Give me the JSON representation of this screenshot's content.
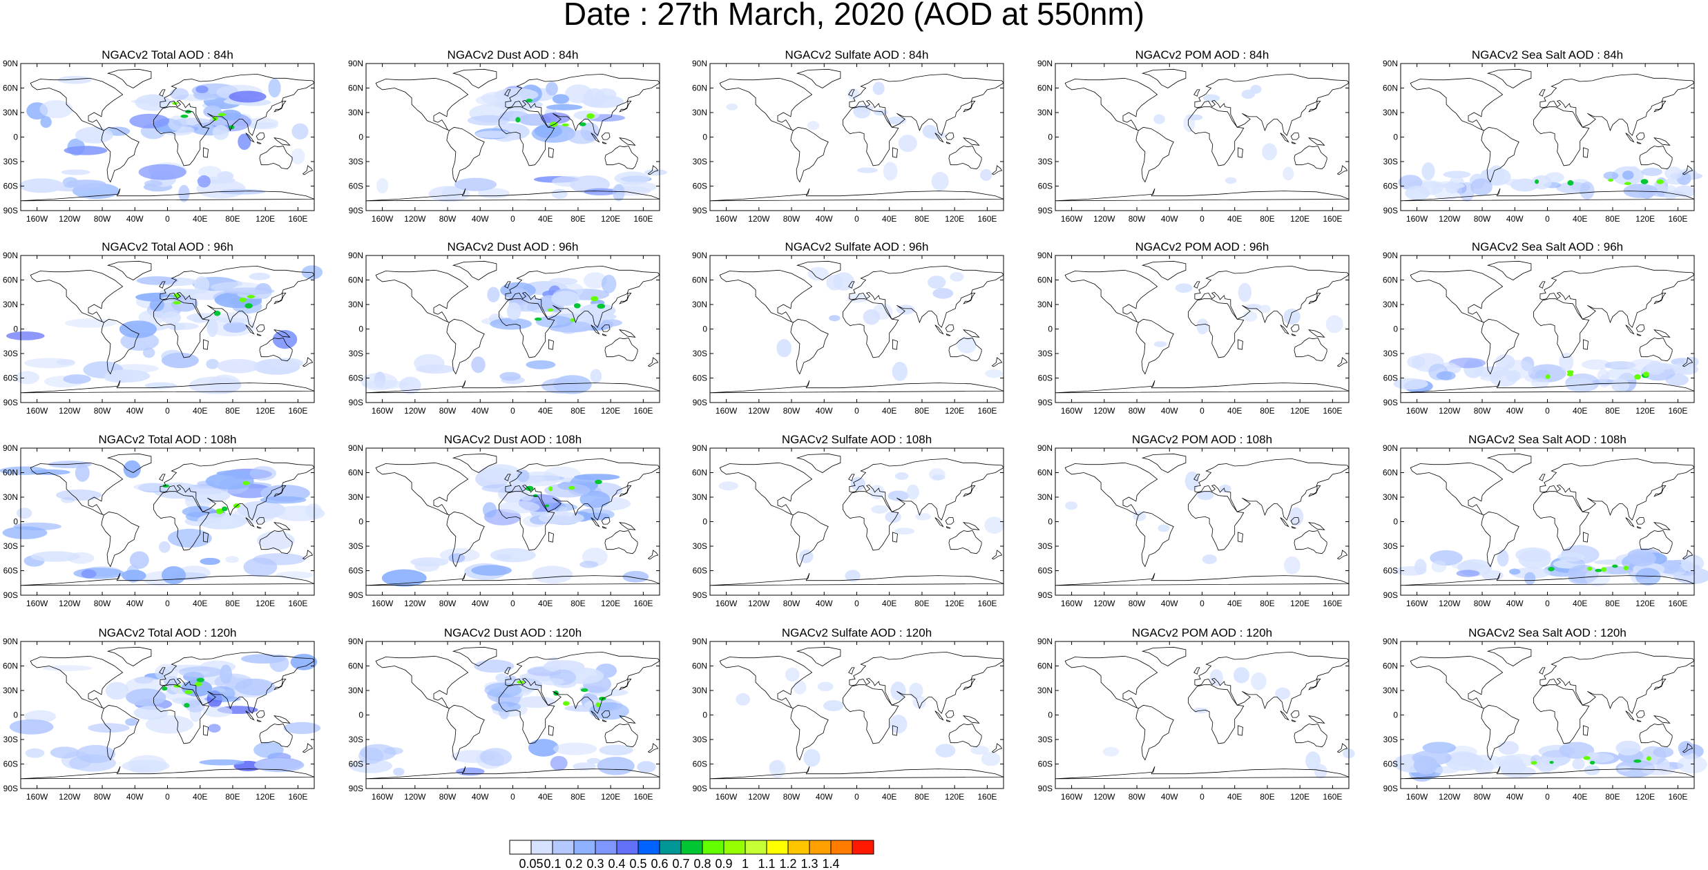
{
  "title": "Date : 27th March, 2020 (AOD at 550nm)",
  "columns": [
    {
      "species": "Total AOD",
      "title_template": "NGACv2 Total AOD : {h}",
      "intensity": 1.0
    },
    {
      "species": "Dust AOD",
      "title_template": "NGACv2 Dust AOD : {h}",
      "intensity": 0.85
    },
    {
      "species": "Sulfate AOD",
      "title_template": "NGACv2 Sulfate AOD : {h}",
      "intensity": 0.25
    },
    {
      "species": "POM AOD",
      "title_template": "NGACv2 POM AOD : {h}",
      "intensity": 0.15
    },
    {
      "species": "Sea Salt AOD",
      "title_template": "NGACv2 Sea Salt AOD : {h}",
      "intensity": 0.7
    }
  ],
  "panel_titles": [
    [
      "NGACv2 Total AOD : 84h",
      "NGACv2 Dust AOD : 84h",
      "NGACv2 Sulfate AOD : 84h",
      "NGACv2 POM AOD : 84h",
      "NGACv2 Sea Salt AOD : 84h"
    ],
    [
      "NGACv2 Total AOD : 96h",
      "NGACv2 Dust AOD : 96h",
      "NGACv2 Sulfate AOD : 96h",
      "NGACv2 POM AOD : 96h",
      "NGACv2 Sea Salt AOD : 96h"
    ],
    [
      "NGACv2 Total AOD : 108h",
      "NGACv2 Dust AOD : 108h",
      "NGACv2 Sulfate AOD : 108h",
      "NGACv2 POM AOD : 108h",
      "NGACv2 Sea Salt AOD : 108h"
    ],
    [
      "NGACv2 Total AOD : 120h",
      "NGACv2 Dust AOD : 120h",
      "NGACv2 Sulfate AOD : 120h",
      "NGACv2 POM AOD : 120h",
      "NGACv2 Sea Salt  AOD : 120h"
    ]
  ],
  "lat_labels": [
    "90N",
    "60N",
    "30N",
    "0",
    "30S",
    "60S",
    "90S"
  ],
  "lon_labels": [
    "160W",
    "120W",
    "80W",
    "40W",
    "0",
    "40E",
    "80E",
    "120E",
    "160E"
  ],
  "colorbar": {
    "levels": [
      "0.05",
      "0.1",
      "0.2",
      "0.3",
      "0.4",
      "0.5",
      "0.6",
      "0.7",
      "0.8",
      "0.9",
      "1",
      "1.1",
      "1.2",
      "1.3",
      "1.4"
    ],
    "colors": [
      "#ffffff",
      "#d6e2ff",
      "#b5c9ff",
      "#8eb2ff",
      "#7f96ff",
      "#6370f8",
      "#0063ff",
      "#009696",
      "#00c633",
      "#63ff00",
      "#96ff00",
      "#c6ff33",
      "#ffff00",
      "#ffc600",
      "#ffa000",
      "#ff7c00",
      "#ff1900"
    ]
  }
}
